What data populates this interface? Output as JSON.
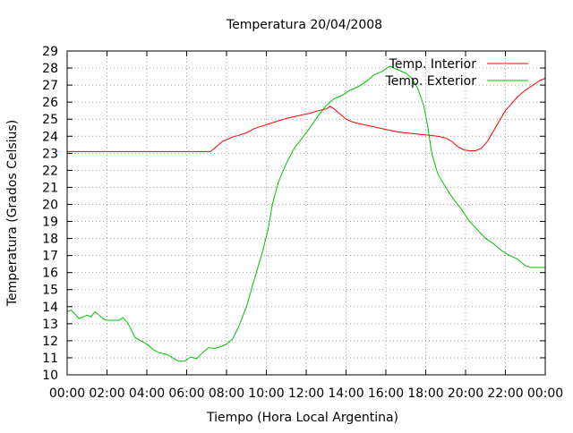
{
  "chart_data": {
    "type": "line",
    "title": "Temperatura 20/04/2008",
    "xlabel": "Tiempo (Hora Local Argentina)",
    "ylabel": "Temperatura (Grados Celsius)",
    "xlim": [
      0,
      24
    ],
    "ylim": [
      10,
      29
    ],
    "x_ticks": [
      "00:00",
      "02:00",
      "04:00",
      "06:00",
      "08:00",
      "10:00",
      "12:00",
      "14:00",
      "16:00",
      "18:00",
      "20:00",
      "22:00",
      "00:00"
    ],
    "y_ticks": [
      10,
      11,
      12,
      13,
      14,
      15,
      16,
      17,
      18,
      19,
      20,
      21,
      22,
      23,
      24,
      25,
      26,
      27,
      28,
      29
    ],
    "grid": true,
    "legend_position": "top-right",
    "series": [
      {
        "name": "Temp. Interior",
        "color": "#ff0000",
        "points": [
          [
            0,
            23.1
          ],
          [
            1,
            23.1
          ],
          [
            2,
            23.1
          ],
          [
            3,
            23.1
          ],
          [
            4,
            23.1
          ],
          [
            5,
            23.1
          ],
          [
            6,
            23.1
          ],
          [
            7,
            23.1
          ],
          [
            7.2,
            23.1
          ],
          [
            7.4,
            23.3
          ],
          [
            7.6,
            23.5
          ],
          [
            7.8,
            23.7
          ],
          [
            8,
            23.8
          ],
          [
            8.3,
            23.95
          ],
          [
            8.6,
            24.05
          ],
          [
            9,
            24.2
          ],
          [
            9.4,
            24.45
          ],
          [
            9.8,
            24.6
          ],
          [
            10.2,
            24.75
          ],
          [
            10.6,
            24.9
          ],
          [
            11,
            25.05
          ],
          [
            11.4,
            25.15
          ],
          [
            11.8,
            25.25
          ],
          [
            12.2,
            25.35
          ],
          [
            12.6,
            25.5
          ],
          [
            13,
            25.6
          ],
          [
            13.2,
            25.75
          ],
          [
            13.4,
            25.6
          ],
          [
            13.6,
            25.4
          ],
          [
            13.8,
            25.2
          ],
          [
            14,
            25.0
          ],
          [
            14.3,
            24.85
          ],
          [
            14.6,
            24.75
          ],
          [
            15,
            24.65
          ],
          [
            15.4,
            24.55
          ],
          [
            15.8,
            24.45
          ],
          [
            16.2,
            24.35
          ],
          [
            16.6,
            24.25
          ],
          [
            17,
            24.2
          ],
          [
            17.4,
            24.15
          ],
          [
            17.8,
            24.1
          ],
          [
            18.2,
            24.05
          ],
          [
            18.6,
            24.0
          ],
          [
            19,
            23.9
          ],
          [
            19.3,
            23.7
          ],
          [
            19.6,
            23.4
          ],
          [
            19.9,
            23.2
          ],
          [
            20.2,
            23.15
          ],
          [
            20.5,
            23.15
          ],
          [
            20.8,
            23.3
          ],
          [
            21.1,
            23.7
          ],
          [
            21.4,
            24.3
          ],
          [
            21.7,
            24.9
          ],
          [
            22,
            25.5
          ],
          [
            22.3,
            25.9
          ],
          [
            22.6,
            26.3
          ],
          [
            23,
            26.7
          ],
          [
            23.4,
            27.0
          ],
          [
            23.7,
            27.25
          ],
          [
            24,
            27.4
          ]
        ]
      },
      {
        "name": "Temp. Exterior",
        "color": "#00c000",
        "points": [
          [
            0,
            13.7
          ],
          [
            0.2,
            13.8
          ],
          [
            0.4,
            13.55
          ],
          [
            0.6,
            13.3
          ],
          [
            0.8,
            13.4
          ],
          [
            1,
            13.5
          ],
          [
            1.2,
            13.4
          ],
          [
            1.4,
            13.7
          ],
          [
            1.6,
            13.5
          ],
          [
            1.8,
            13.3
          ],
          [
            2,
            13.2
          ],
          [
            2.3,
            13.2
          ],
          [
            2.6,
            13.2
          ],
          [
            2.8,
            13.35
          ],
          [
            3,
            13.1
          ],
          [
            3.2,
            12.7
          ],
          [
            3.4,
            12.2
          ],
          [
            3.7,
            12.0
          ],
          [
            4,
            11.8
          ],
          [
            4.3,
            11.5
          ],
          [
            4.6,
            11.3
          ],
          [
            5,
            11.2
          ],
          [
            5.3,
            11.0
          ],
          [
            5.6,
            10.8
          ],
          [
            5.9,
            10.8
          ],
          [
            6.2,
            11.05
          ],
          [
            6.5,
            10.95
          ],
          [
            6.8,
            11.3
          ],
          [
            7.1,
            11.6
          ],
          [
            7.4,
            11.55
          ],
          [
            7.7,
            11.65
          ],
          [
            8,
            11.8
          ],
          [
            8.3,
            12.1
          ],
          [
            8.6,
            12.8
          ],
          [
            9,
            14.0
          ],
          [
            9.4,
            15.6
          ],
          [
            9.8,
            17.2
          ],
          [
            10.1,
            18.6
          ],
          [
            10.3,
            20.0
          ],
          [
            10.6,
            21.3
          ],
          [
            11,
            22.4
          ],
          [
            11.4,
            23.3
          ],
          [
            11.8,
            23.9
          ],
          [
            12.2,
            24.5
          ],
          [
            12.6,
            25.2
          ],
          [
            13,
            25.8
          ],
          [
            13.4,
            26.2
          ],
          [
            13.8,
            26.4
          ],
          [
            14.2,
            26.7
          ],
          [
            14.6,
            26.9
          ],
          [
            15,
            27.2
          ],
          [
            15.4,
            27.6
          ],
          [
            15.8,
            27.8
          ],
          [
            16.2,
            28.1
          ],
          [
            16.6,
            27.9
          ],
          [
            17,
            27.7
          ],
          [
            17.3,
            27.4
          ],
          [
            17.6,
            26.8
          ],
          [
            17.9,
            25.8
          ],
          [
            18.1,
            24.6
          ],
          [
            18.3,
            23.0
          ],
          [
            18.6,
            21.8
          ],
          [
            19,
            21.0
          ],
          [
            19.4,
            20.3
          ],
          [
            19.8,
            19.7
          ],
          [
            20.2,
            19.0
          ],
          [
            20.6,
            18.5
          ],
          [
            21,
            18.0
          ],
          [
            21.4,
            17.7
          ],
          [
            21.8,
            17.3
          ],
          [
            22.2,
            17.0
          ],
          [
            22.6,
            16.8
          ],
          [
            23,
            16.4
          ],
          [
            23.3,
            16.3
          ],
          [
            23.6,
            16.3
          ],
          [
            24,
            16.3
          ]
        ]
      }
    ]
  }
}
